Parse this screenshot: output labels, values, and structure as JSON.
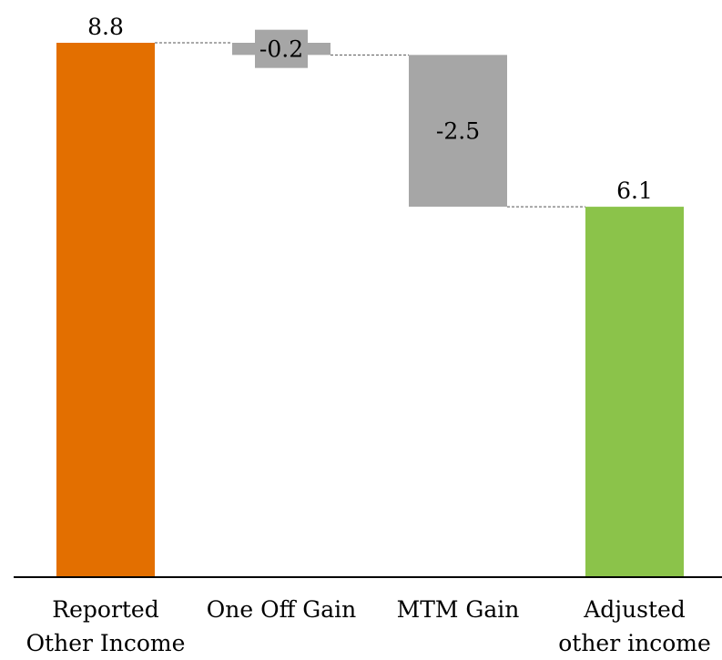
{
  "chart_data": {
    "type": "waterfall",
    "categories": [
      [
        "Reported",
        "Other Income"
      ],
      [
        "One Off Gain"
      ],
      [
        "MTM Gain"
      ],
      [
        "Adjusted",
        "other income"
      ]
    ],
    "values": [
      8.8,
      -0.2,
      -2.5,
      6.1
    ],
    "bar_kinds": [
      "total",
      "delta",
      "delta",
      "total"
    ],
    "data_labels": [
      "8.8",
      "-0.2",
      "-2.5",
      "6.1"
    ],
    "ylim": [
      0,
      8.8
    ],
    "grid": false,
    "legend": "none",
    "connectors": true,
    "colors": {
      "start": "#E36F00",
      "delta": "#A6A6A6",
      "end": "#8BC34A",
      "axis": "#000000",
      "connector": "#555555",
      "label_bg": "#A6A6A6"
    }
  }
}
